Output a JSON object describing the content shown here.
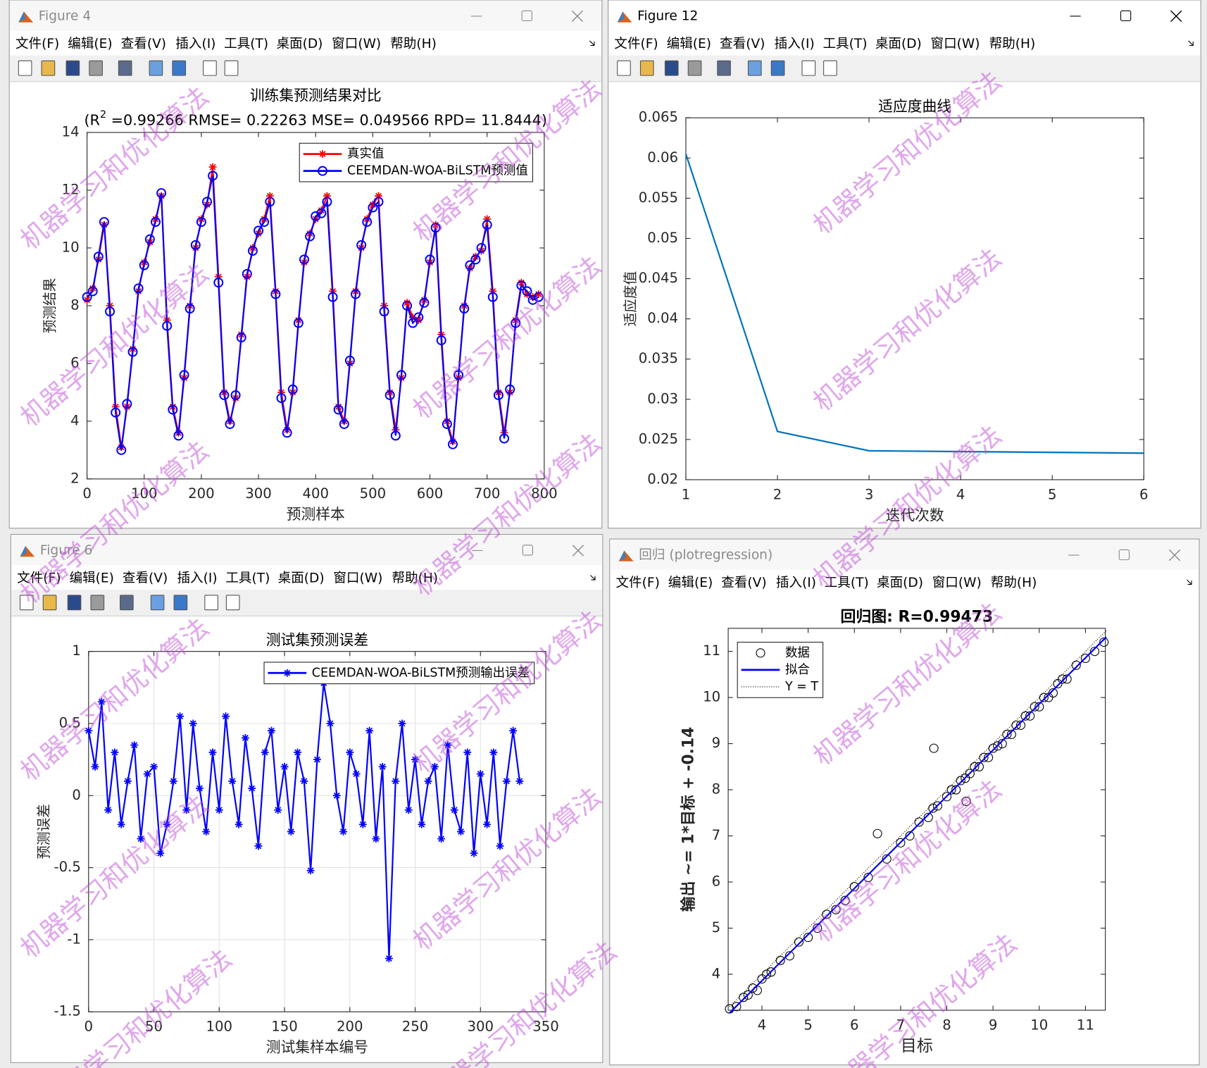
{
  "windows": [
    {
      "title": "Figure 4"
    },
    {
      "title": "Figure 12"
    },
    {
      "title": "Figure 6"
    },
    {
      "title": "回归 (plotregression)"
    }
  ],
  "menu": [
    "文件(F)",
    "编辑(E)",
    "查看(V)",
    "插入(I)",
    "工具(T)",
    "桌面(D)",
    "窗口(W)",
    "帮助(H)"
  ],
  "watermark": "机器学习和优化算法",
  "chart_data": [
    {
      "type": "line",
      "title": "训练集预测结果对比",
      "subtitle": [
        "(R",
        "2",
        " =0.99266 RMSE= 0.22263 MSE= 0.049566 RPD= 11.8444)"
      ],
      "xlabel": "预测样本",
      "ylabel": "预测结果",
      "xlim": [
        0,
        800
      ],
      "xticks": [
        0,
        100,
        200,
        300,
        400,
        500,
        600,
        700,
        800
      ],
      "ylim": [
        2,
        14
      ],
      "yticks": [
        2,
        4,
        6,
        8,
        10,
        12,
        14
      ],
      "grid": false,
      "legend": "upper right",
      "x": [
        0,
        10,
        20,
        30,
        40,
        50,
        60,
        70,
        80,
        90,
        100,
        110,
        120,
        130,
        140,
        150,
        160,
        170,
        180,
        190,
        200,
        210,
        220,
        230,
        240,
        250,
        260,
        270,
        280,
        290,
        300,
        310,
        320,
        330,
        340,
        350,
        360,
        370,
        380,
        390,
        400,
        410,
        420,
        430,
        440,
        450,
        460,
        470,
        480,
        490,
        500,
        510,
        520,
        530,
        540,
        550,
        560,
        570,
        580,
        590,
        600,
        610,
        620,
        630,
        640,
        650,
        660,
        670,
        680,
        690,
        700,
        710,
        720,
        730,
        740,
        750,
        760,
        770,
        780,
        790
      ],
      "series": [
        {
          "name": "真实值",
          "color": "#ff0000",
          "marker": "*",
          "linestyle": "-",
          "values": [
            8.2,
            8.6,
            9.6,
            10.8,
            8.0,
            4.5,
            3.1,
            4.5,
            6.5,
            8.5,
            9.5,
            10.2,
            11.0,
            11.8,
            7.5,
            4.5,
            3.6,
            5.5,
            8.0,
            10.0,
            11.0,
            11.5,
            12.8,
            9.0,
            5.0,
            4.0,
            4.8,
            7.0,
            9.0,
            10.0,
            10.5,
            11.0,
            11.8,
            8.5,
            5.0,
            3.7,
            5.0,
            7.5,
            9.5,
            10.5,
            11.0,
            11.3,
            11.8,
            8.5,
            4.5,
            4.0,
            6.0,
            8.5,
            10.0,
            11.0,
            11.5,
            11.8,
            8.0,
            5.0,
            3.7,
            5.5,
            8.1,
            7.6,
            7.5,
            8.2,
            9.5,
            10.8,
            7.0,
            4.0,
            3.3,
            5.5,
            8.0,
            9.3,
            9.7,
            9.9,
            11.0,
            8.5,
            5.0,
            3.6,
            5.0,
            7.5,
            8.8,
            8.4,
            8.3,
            8.4
          ]
        },
        {
          "name": "CEEMDAN-WOA-BiLSTM预测值",
          "color": "#0000ff",
          "marker": "o",
          "linestyle": "-",
          "values": [
            8.3,
            8.5,
            9.7,
            10.9,
            7.8,
            4.3,
            3.0,
            4.6,
            6.4,
            8.6,
            9.4,
            10.3,
            10.9,
            11.9,
            7.3,
            4.4,
            3.5,
            5.6,
            7.9,
            10.1,
            10.9,
            11.6,
            12.5,
            8.8,
            4.9,
            3.9,
            4.9,
            6.9,
            9.1,
            9.9,
            10.6,
            10.9,
            11.6,
            8.4,
            4.8,
            3.6,
            5.1,
            7.4,
            9.6,
            10.4,
            11.1,
            11.2,
            11.6,
            8.3,
            4.4,
            3.9,
            6.1,
            8.4,
            10.1,
            10.9,
            11.4,
            11.6,
            7.8,
            4.9,
            3.5,
            5.6,
            8.0,
            7.4,
            7.6,
            8.1,
            9.6,
            10.7,
            6.8,
            3.9,
            3.2,
            5.6,
            7.9,
            9.4,
            9.6,
            10.0,
            10.8,
            8.3,
            4.9,
            3.4,
            5.1,
            7.4,
            8.7,
            8.5,
            8.2,
            8.3
          ]
        }
      ]
    },
    {
      "type": "line",
      "title": "适应度曲线",
      "xlabel": "迭代次数",
      "ylabel": "适应度值",
      "xlim": [
        1,
        6
      ],
      "xticks": [
        1,
        2,
        3,
        4,
        5,
        6
      ],
      "ylim": [
        0.02,
        0.065
      ],
      "yticks": [
        0.02,
        0.025,
        0.03,
        0.035,
        0.04,
        0.045,
        0.05,
        0.055,
        0.06,
        0.065
      ],
      "grid": false,
      "x": [
        1,
        2,
        3,
        4,
        5,
        6
      ],
      "series": [
        {
          "color": "#0072bd",
          "linestyle": "-",
          "values": [
            0.0605,
            0.026,
            0.0236,
            0.0235,
            0.0234,
            0.0233
          ]
        }
      ]
    },
    {
      "type": "line",
      "title": "测试集预测误差",
      "xlabel": "测试集样本编号",
      "ylabel": "预测误差",
      "xlim": [
        0,
        350
      ],
      "xticks": [
        0,
        50,
        100,
        150,
        200,
        250,
        300,
        350
      ],
      "ylim": [
        -1.5,
        1
      ],
      "yticks": [
        -1.5,
        -1,
        -0.5,
        0,
        0.5,
        1
      ],
      "grid": true,
      "legend": "upper right",
      "x": [
        0,
        5,
        10,
        15,
        20,
        25,
        30,
        35,
        40,
        45,
        50,
        55,
        60,
        65,
        70,
        75,
        80,
        85,
        90,
        95,
        100,
        105,
        110,
        115,
        120,
        125,
        130,
        135,
        140,
        145,
        150,
        155,
        160,
        165,
        170,
        175,
        180,
        185,
        190,
        195,
        200,
        205,
        210,
        215,
        220,
        225,
        230,
        235,
        240,
        245,
        250,
        255,
        260,
        265,
        270,
        275,
        280,
        285,
        290,
        295,
        300,
        305,
        310,
        315,
        320,
        325,
        330
      ],
      "series": [
        {
          "name": "CEEMDAN-WOA-BiLSTM预测输出误差",
          "color": "#0000ff",
          "marker": "*",
          "linestyle": "-",
          "values": [
            0.45,
            0.2,
            0.65,
            -0.1,
            0.3,
            -0.2,
            0.1,
            0.35,
            -0.3,
            0.15,
            0.2,
            -0.4,
            -0.2,
            0.1,
            0.55,
            -0.1,
            0.5,
            0.05,
            -0.25,
            0.3,
            -0.1,
            0.55,
            0.1,
            -0.2,
            0.4,
            0.05,
            -0.35,
            0.3,
            0.45,
            -0.1,
            0.2,
            -0.25,
            0.3,
            0.1,
            -0.52,
            0.25,
            0.78,
            0.5,
            0.0,
            -0.25,
            0.3,
            0.15,
            -0.2,
            0.45,
            -0.3,
            0.2,
            -1.13,
            0.1,
            0.5,
            -0.1,
            0.25,
            -0.2,
            0.1,
            0.2,
            -0.3,
            0.35,
            -0.1,
            -0.25,
            0.3,
            -0.4,
            0.15,
            -0.2,
            0.3,
            -0.35,
            0.1,
            0.45,
            0.1
          ]
        }
      ]
    },
    {
      "type": "scatter",
      "title": "回归图: R=0.99473",
      "bold": true,
      "xlabel": "目标",
      "ylabel": "输出 ~= 1*目标 + -0.14",
      "xlim": [
        3.27,
        11.43
      ],
      "xticks": [
        4,
        5,
        6,
        7,
        8,
        9,
        10,
        11
      ],
      "ylim": [
        3.22,
        11.5
      ],
      "yticks": [
        4,
        5,
        6,
        7,
        8,
        9,
        10,
        11
      ],
      "grid": false,
      "legend": "upper left",
      "series": [
        {
          "name": "数据",
          "color": "#000000",
          "marker": "o",
          "linestyle": "none",
          "x": [
            3.3,
            3.45,
            3.6,
            3.7,
            3.8,
            3.9,
            4.0,
            4.1,
            4.2,
            4.4,
            4.6,
            4.8,
            5.0,
            5.2,
            5.4,
            5.6,
            5.8,
            6.0,
            6.3,
            6.5,
            6.7,
            7.0,
            7.2,
            7.4,
            7.6,
            7.7,
            7.8,
            8.0,
            8.1,
            8.2,
            8.3,
            8.4,
            8.5,
            8.6,
            8.7,
            8.8,
            8.9,
            9.0,
            9.1,
            9.2,
            9.3,
            9.4,
            9.5,
            9.6,
            9.7,
            9.8,
            9.9,
            10.0,
            10.1,
            10.2,
            10.3,
            10.4,
            10.5,
            10.6,
            10.8,
            11.0,
            11.2,
            11.4,
            8.42,
            7.72
          ],
          "values": [
            3.25,
            3.3,
            3.5,
            3.55,
            3.7,
            3.65,
            3.9,
            4.0,
            4.05,
            4.3,
            4.4,
            4.7,
            4.8,
            5.0,
            5.3,
            5.4,
            5.6,
            5.9,
            6.1,
            7.05,
            6.5,
            6.85,
            7.0,
            7.3,
            7.4,
            7.6,
            7.65,
            7.85,
            8.0,
            8.0,
            8.2,
            8.25,
            8.35,
            8.5,
            8.5,
            8.7,
            8.7,
            8.9,
            8.95,
            9.0,
            9.2,
            9.2,
            9.4,
            9.4,
            9.6,
            9.6,
            9.8,
            9.8,
            10.0,
            10.0,
            10.1,
            10.3,
            10.4,
            10.4,
            10.7,
            10.85,
            11.0,
            11.2,
            7.75,
            8.9
          ]
        },
        {
          "name": "拟合",
          "color": "#0000ff",
          "linestyle": "-",
          "x": [
            3.3,
            11.45
          ],
          "values": [
            3.16,
            11.31
          ]
        },
        {
          "name": "Y = T",
          "color": "#000000",
          "linestyle": ":",
          "x": [
            3.3,
            11.45
          ],
          "values": [
            3.3,
            11.45
          ]
        }
      ]
    }
  ]
}
